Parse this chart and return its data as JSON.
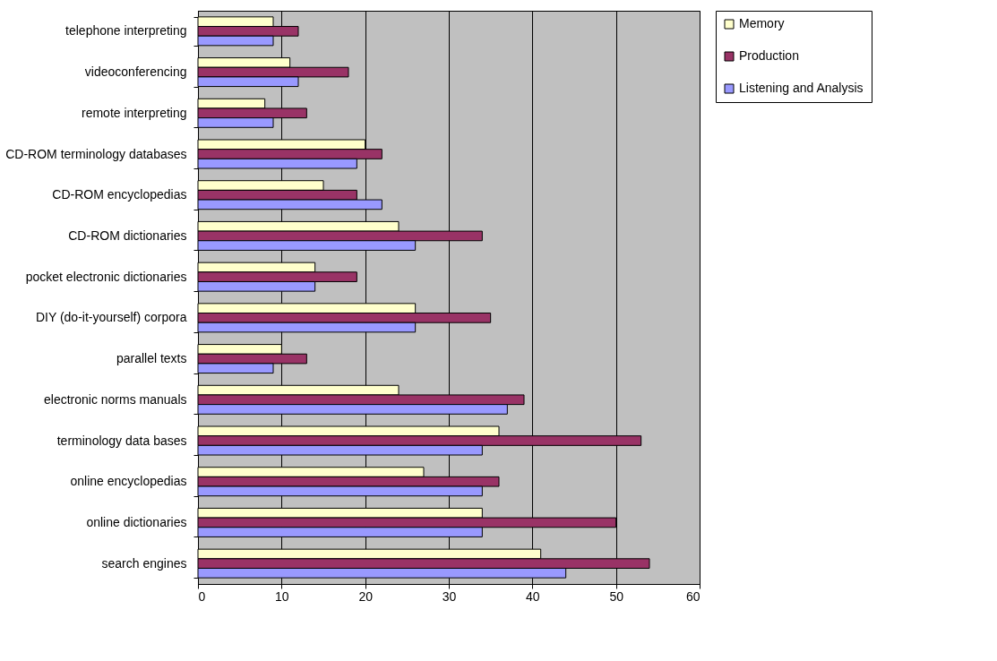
{
  "chart_data": {
    "type": "bar",
    "orientation": "horizontal",
    "categories": [
      "telephone interpreting",
      "videoconferencing",
      "remote interpreting",
      "CD-ROM terminology databases",
      "CD-ROM encyclopedias",
      "CD-ROM dictionaries",
      "pocket electronic dictionaries",
      "DIY (do-it-yourself) corpora",
      "parallel texts",
      "electronic norms manuals",
      "terminology data bases",
      "online encyclopedias",
      "online dictionaries",
      "search engines"
    ],
    "series": [
      {
        "name": "Memory",
        "color": "#ffffcc",
        "values": [
          9,
          11,
          8,
          20,
          15,
          24,
          14,
          26,
          10,
          24,
          36,
          27,
          34,
          41
        ]
      },
      {
        "name": "Production",
        "color": "#993366",
        "values": [
          12,
          18,
          13,
          22,
          19,
          34,
          19,
          35,
          13,
          39,
          53,
          36,
          50,
          54
        ]
      },
      {
        "name": "Listening and Analysis",
        "color": "#9999ff",
        "values": [
          9,
          12,
          9,
          19,
          22,
          26,
          14,
          26,
          9,
          37,
          34,
          34,
          34,
          44
        ]
      }
    ],
    "xlim": [
      0,
      60
    ],
    "xticks": [
      0,
      10,
      20,
      30,
      40,
      50,
      60
    ],
    "grid": "x",
    "legend": "right"
  }
}
